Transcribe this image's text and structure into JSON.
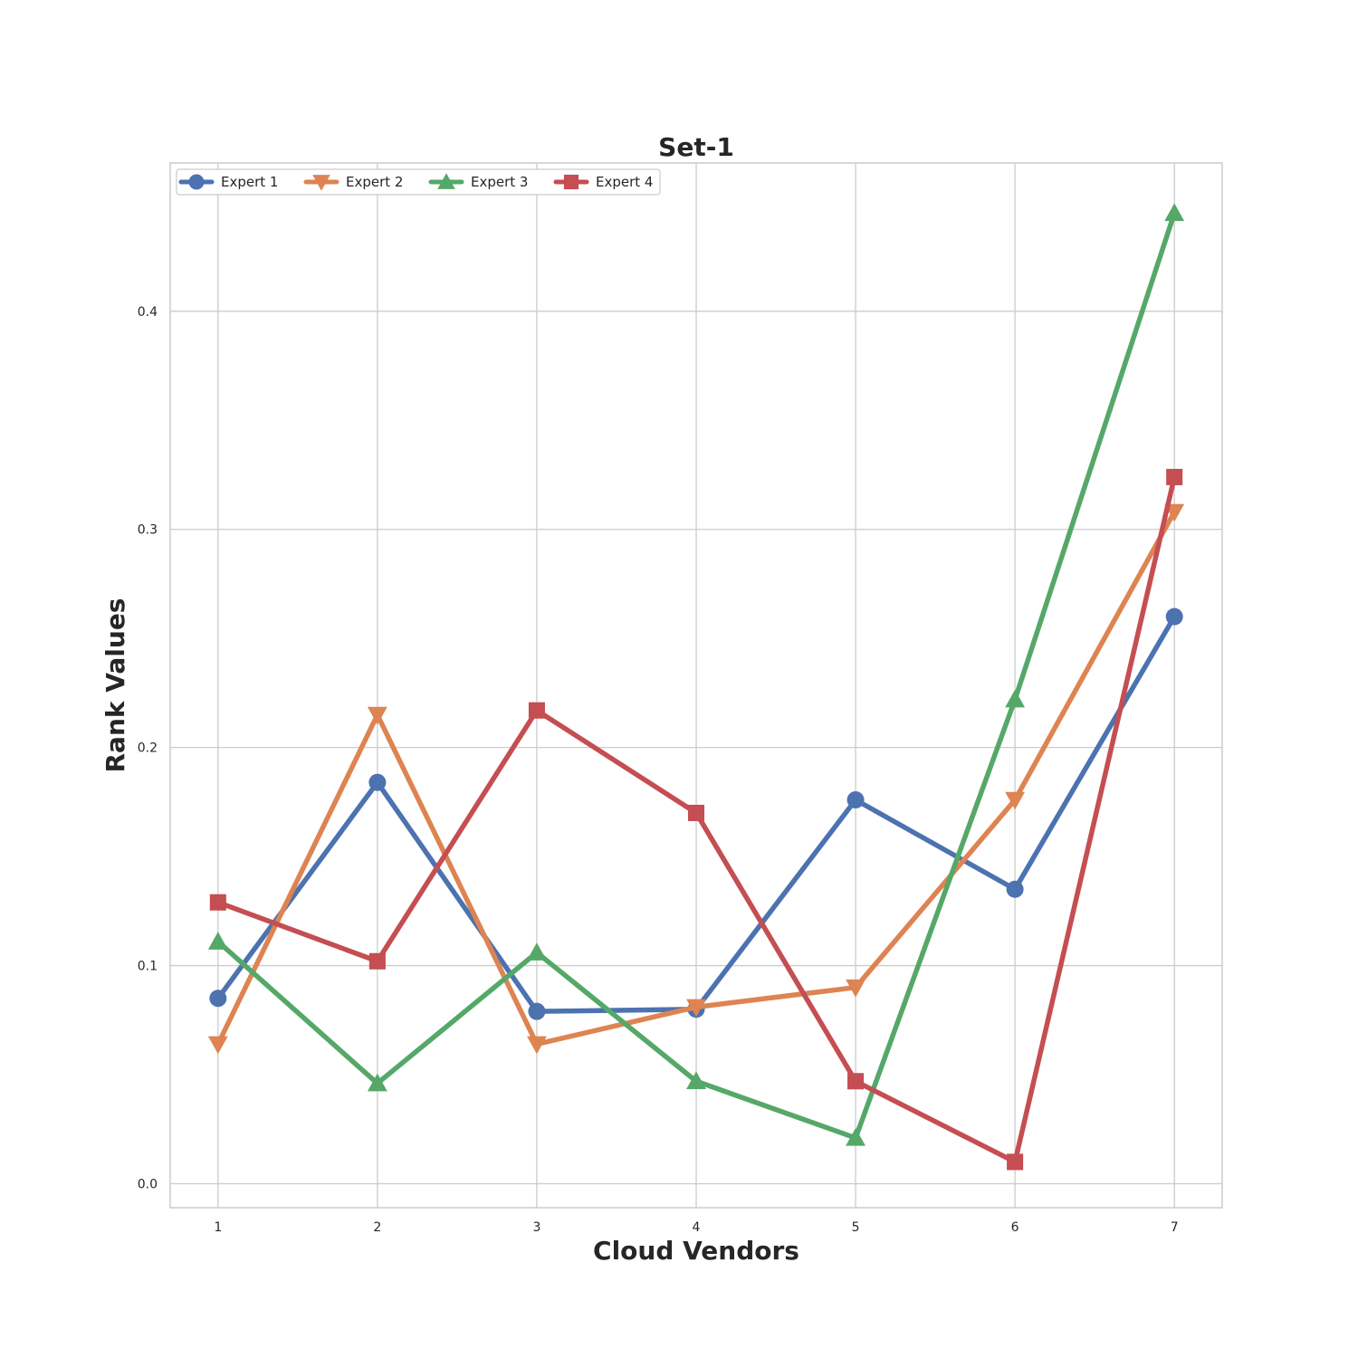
{
  "chart_data": {
    "type": "line",
    "title": "Set-1",
    "xlabel": "Cloud Vendors",
    "ylabel": "Rank Values",
    "x": [
      1,
      2,
      3,
      4,
      5,
      6,
      7
    ],
    "xlim": [
      0.7,
      7.3
    ],
    "ylim": [
      -0.011,
      0.468
    ],
    "yticks": [
      0.0,
      0.1,
      0.2,
      0.3,
      0.4
    ],
    "ytick_labels": [
      "0.0",
      "0.1",
      "0.2",
      "0.3",
      "0.4"
    ],
    "xtick_labels": [
      "1",
      "2",
      "3",
      "4",
      "5",
      "6",
      "7"
    ],
    "grid": true,
    "legend_position": "top-left",
    "series": [
      {
        "name": "Expert 1",
        "color": "#4c72b0",
        "marker": "circle",
        "values": [
          0.085,
          0.184,
          0.079,
          0.08,
          0.176,
          0.135,
          0.26
        ]
      },
      {
        "name": "Expert 2",
        "color": "#dd8452",
        "marker": "triangle-down",
        "values": [
          0.064,
          0.215,
          0.064,
          0.081,
          0.09,
          0.176,
          0.308
        ]
      },
      {
        "name": "Expert 3",
        "color": "#55a868",
        "marker": "triangle-up",
        "values": [
          0.111,
          0.046,
          0.106,
          0.047,
          0.021,
          0.222,
          0.445
        ]
      },
      {
        "name": "Expert 4",
        "color": "#c44e52",
        "marker": "square",
        "values": [
          0.129,
          0.102,
          0.217,
          0.17,
          0.047,
          0.01,
          0.324
        ]
      }
    ]
  }
}
